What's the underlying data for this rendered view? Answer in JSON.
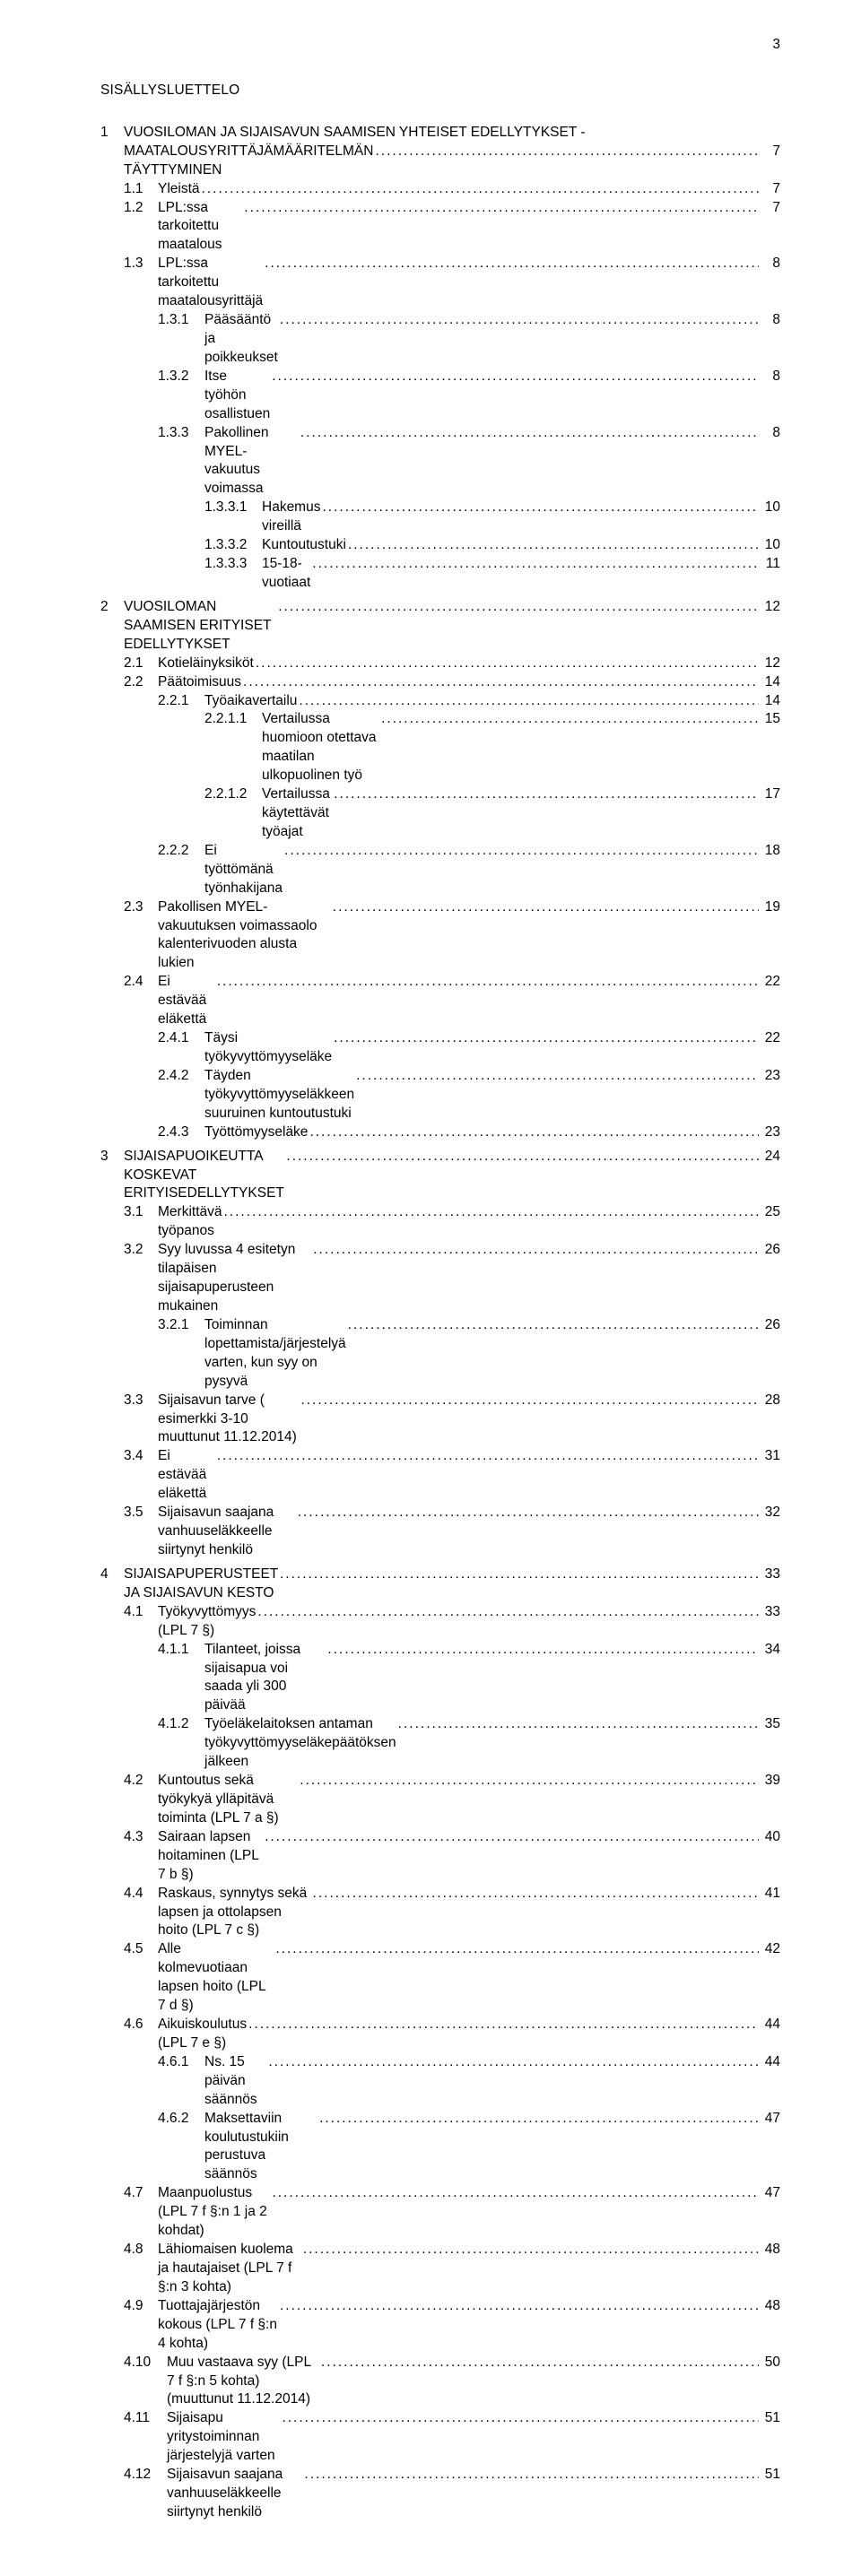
{
  "page_number": "3",
  "toc_title": "SISÄLLYSLUETTELO",
  "entries": [
    {
      "level": "1ml",
      "num": "1",
      "text1": "VUOSILOMAN JA SIJAISAVUN SAAMISEN YHTEISET EDELLYTYKSET -",
      "text2": "MAATALOUSYRITTÄJÄMÄÄRITELMÄN TÄYTTYMINEN",
      "page": "7"
    },
    {
      "level": "2",
      "num": "1.1",
      "text": "Yleistä",
      "page": "7"
    },
    {
      "level": "2",
      "num": "1.2",
      "text": "LPL:ssa tarkoitettu maatalous",
      "page": "7"
    },
    {
      "level": "2",
      "num": "1.3",
      "text": "LPL:ssa tarkoitettu maatalousyrittäjä",
      "page": "8"
    },
    {
      "level": "3",
      "num": "1.3.1",
      "text": "Pääsääntö ja poikkeukset",
      "page": "8"
    },
    {
      "level": "3",
      "num": "1.3.2",
      "text": "Itse työhön osallistuen",
      "page": "8"
    },
    {
      "level": "3",
      "num": "1.3.3",
      "text": "Pakollinen MYEL-vakuutus voimassa",
      "page": "8"
    },
    {
      "level": "4",
      "num": "1.3.3.1",
      "text": "Hakemus vireillä",
      "page": "10"
    },
    {
      "level": "4",
      "num": "1.3.3.2",
      "text": "Kuntoutustuki",
      "page": "10"
    },
    {
      "level": "4",
      "num": "1.3.3.3",
      "text": "15-18-vuotiaat",
      "page": "11"
    },
    {
      "level": "gap"
    },
    {
      "level": "1",
      "num": "2",
      "text": "VUOSILOMAN SAAMISEN ERITYISET EDELLYTYKSET",
      "page": "12"
    },
    {
      "level": "2",
      "num": "2.1",
      "text": "Kotieläinyksiköt",
      "page": "12"
    },
    {
      "level": "2",
      "num": "2.2",
      "text": "Päätoimisuus",
      "page": "14"
    },
    {
      "level": "3",
      "num": "2.2.1",
      "text": "Työaikavertailu",
      "page": "14"
    },
    {
      "level": "4",
      "num": "2.2.1.1",
      "text": "Vertailussa huomioon otettava maatilan ulkopuolinen työ",
      "page": "15"
    },
    {
      "level": "4",
      "num": "2.2.1.2",
      "text": "Vertailussa käytettävät työajat",
      "page": "17"
    },
    {
      "level": "3",
      "num": "2.2.2",
      "text": "Ei työttömänä työnhakijana",
      "page": "18"
    },
    {
      "level": "2",
      "num": "2.3",
      "text": "Pakollisen MYEL-vakuutuksen voimassaolo kalenterivuoden alusta lukien",
      "page": "19"
    },
    {
      "level": "2",
      "num": "2.4",
      "text": "Ei estävää eläkettä",
      "page": "22"
    },
    {
      "level": "3",
      "num": "2.4.1",
      "text": "Täysi työkyvyttömyyseläke",
      "page": "22"
    },
    {
      "level": "3",
      "num": "2.4.2",
      "text": "Täyden työkyvyttömyyseläkkeen suuruinen kuntoutustuki",
      "page": "23"
    },
    {
      "level": "3",
      "num": "2.4.3",
      "text": "Työttömyyseläke",
      "page": "23"
    },
    {
      "level": "gap"
    },
    {
      "level": "1",
      "num": "3",
      "text": "SIJAISAPUOIKEUTTA KOSKEVAT ERITYISEDELLYTYKSET",
      "page": "24"
    },
    {
      "level": "2",
      "num": "3.1",
      "text": "Merkittävä työpanos",
      "page": "25"
    },
    {
      "level": "2",
      "num": "3.2",
      "text": "Syy luvussa 4 esitetyn tilapäisen sijaisapuperusteen mukainen",
      "page": "26"
    },
    {
      "level": "3",
      "num": "3.2.1",
      "text": "Toiminnan lopettamista/järjestelyä varten, kun syy on pysyvä",
      "page": "26"
    },
    {
      "level": "2",
      "num": "3.3",
      "text": "Sijaisavun tarve ( esimerkki 3-10 muuttunut 11.12.2014)",
      "page": "28"
    },
    {
      "level": "2",
      "num": "3.4",
      "text": "Ei estävää eläkettä",
      "page": "31"
    },
    {
      "level": "2",
      "num": "3.5",
      "text": "Sijaisavun saajana vanhuuseläkkeelle siirtynyt henkilö",
      "page": "32"
    },
    {
      "level": "gap"
    },
    {
      "level": "1",
      "num": "4",
      "text": "SIJAISAPUPERUSTEET JA SIJAISAVUN KESTO",
      "page": "33"
    },
    {
      "level": "2",
      "num": "4.1",
      "text": "Työkyvyttömyys (LPL 7 §)",
      "page": "33"
    },
    {
      "level": "3",
      "num": "4.1.1",
      "text": "Tilanteet, joissa sijaisapua voi saada yli 300 päivää",
      "page": "34"
    },
    {
      "level": "3",
      "num": "4.1.2",
      "text": "Työeläkelaitoksen antaman työkyvyttömyyseläkepäätöksen jälkeen",
      "page": "35"
    },
    {
      "level": "2",
      "num": "4.2",
      "text": "Kuntoutus sekä työkykyä ylläpitävä toiminta (LPL 7 a §)",
      "page": "39"
    },
    {
      "level": "2",
      "num": "4.3",
      "text": "Sairaan lapsen hoitaminen (LPL 7 b §)",
      "page": "40"
    },
    {
      "level": "2",
      "num": "4.4",
      "text": "Raskaus, synnytys sekä lapsen ja ottolapsen hoito (LPL 7 c §)",
      "page": "41"
    },
    {
      "level": "2",
      "num": "4.5",
      "text": "Alle kolmevuotiaan lapsen hoito (LPL 7 d §)",
      "page": "42"
    },
    {
      "level": "2",
      "num": "4.6",
      "text": "Aikuiskoulutus (LPL 7 e §)",
      "page": "44"
    },
    {
      "level": "3",
      "num": "4.6.1",
      "text": "Ns. 15 päivän säännös",
      "page": "44"
    },
    {
      "level": "3",
      "num": "4.6.2",
      "text": "Maksettaviin koulutustukiin perustuva säännös",
      "page": "47"
    },
    {
      "level": "2",
      "num": "4.7",
      "text": "Maanpuolustus (LPL 7 f §:n 1 ja 2 kohdat)",
      "page": "47"
    },
    {
      "level": "2",
      "num": "4.8",
      "text": "Lähiomaisen kuolema ja hautajaiset (LPL 7 f §:n 3 kohta)",
      "page": "48"
    },
    {
      "level": "2",
      "num": "4.9",
      "text": "Tuottajajärjestön kokous (LPL 7 f §:n 4 kohta)",
      "page": "48"
    },
    {
      "level": "2b",
      "num": "4.10",
      "text": "Muu vastaava syy (LPL 7 f §:n 5 kohta) (muuttunut 11.12.2014)",
      "page": "50"
    },
    {
      "level": "2b",
      "num": "4.11",
      "text": "Sijaisapu yritystoiminnan järjestelyjä varten",
      "page": "51"
    },
    {
      "level": "2b",
      "num": "4.12",
      "text": "Sijaisavun saajana vanhuuseläkkeelle siirtynyt henkilö",
      "page": "51"
    }
  ]
}
